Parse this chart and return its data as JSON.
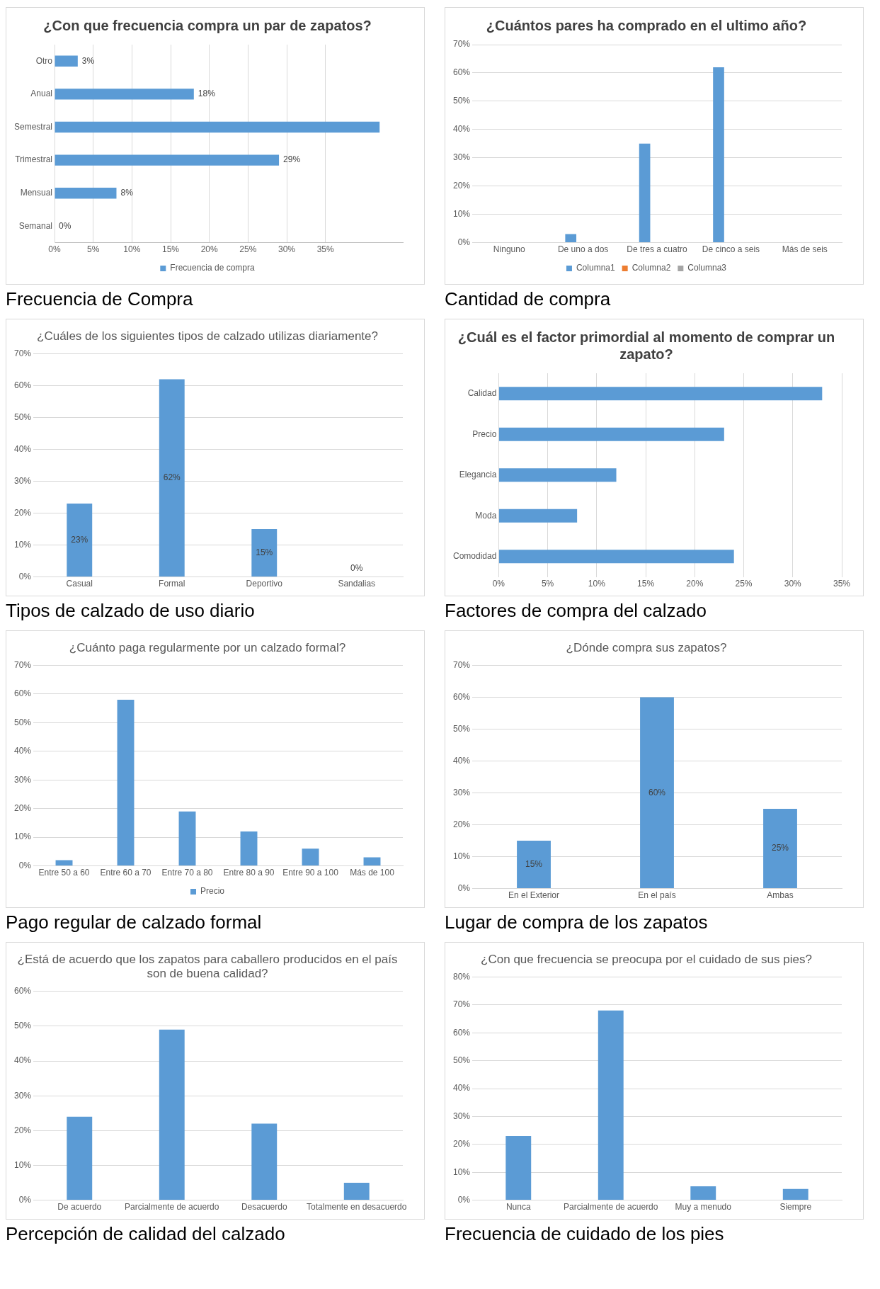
{
  "chart_data": [
    {
      "type": "bar",
      "orientation": "horizontal",
      "title": "¿Con que frecuencia compra un par de zapatos?",
      "categories": [
        "Otro",
        "Anual",
        "Semestral",
        "Trimestral",
        "Mensual",
        "Semanal"
      ],
      "series": [
        {
          "name": "Frecuencia de compra",
          "color": "#5b9bd5",
          "values": [
            3,
            18,
            42,
            29,
            8,
            0
          ],
          "value_labels": [
            "3%",
            "18%",
            null,
            "29%",
            "8%",
            "0%"
          ]
        }
      ],
      "xlim": [
        0,
        45
      ],
      "xticks": [
        {
          "value": 0,
          "label": "0%"
        },
        {
          "value": 5,
          "label": "5%"
        },
        {
          "value": 10,
          "label": "10%"
        },
        {
          "value": 15,
          "label": "15%"
        },
        {
          "value": 20,
          "label": "20%"
        },
        {
          "value": 25,
          "label": "25%"
        },
        {
          "value": 30,
          "label": "30%"
        },
        {
          "value": 35,
          "label": "35%"
        }
      ],
      "grid": "x",
      "legend": "bottom",
      "annotations": [
        "Frecuencia de Compra"
      ]
    },
    {
      "type": "bar",
      "title": "¿Cuántos pares ha comprado en el ultimo año?",
      "categories": [
        "Ninguno",
        "De uno a dos",
        "De tres a cuatro",
        "De cinco a seis",
        "Más de seis"
      ],
      "series": [
        {
          "name": "Columna1",
          "color": "#5b9bd5",
          "values": [
            0,
            3,
            35,
            62,
            0
          ]
        },
        {
          "name": "Columna2",
          "color": "#ed7d31",
          "values": [
            null,
            null,
            null,
            null,
            null
          ]
        },
        {
          "name": "Columna3",
          "color": "#a5a5a5",
          "values": [
            null,
            null,
            null,
            null,
            null
          ]
        }
      ],
      "ylim": [
        0,
        70
      ],
      "yticks": [
        {
          "value": 0,
          "label": "0%"
        },
        {
          "value": 10,
          "label": "10%"
        },
        {
          "value": 20,
          "label": "20%"
        },
        {
          "value": 30,
          "label": "30%"
        },
        {
          "value": 40,
          "label": "40%"
        },
        {
          "value": 50,
          "label": "50%"
        },
        {
          "value": 60,
          "label": "60%"
        },
        {
          "value": 70,
          "label": "70%"
        }
      ],
      "grid": "y",
      "legend": "bottom",
      "annotations": [
        "Cantidad de compra"
      ]
    },
    {
      "type": "bar",
      "title": "¿Cuáles de los siguientes tipos de calzado utilizas diariamente?",
      "categories": [
        "Casual",
        "Formal",
        "Deportivo",
        "Sandalias"
      ],
      "series": [
        {
          "color": "#5b9bd5",
          "values": [
            23,
            62,
            15,
            0
          ],
          "value_labels": [
            "23%",
            "62%",
            "15%",
            "0%"
          ]
        }
      ],
      "ylim": [
        0,
        70
      ],
      "yticks": [
        {
          "value": 0,
          "label": "0%"
        },
        {
          "value": 10,
          "label": "10%"
        },
        {
          "value": 20,
          "label": "20%"
        },
        {
          "value": 30,
          "label": "30%"
        },
        {
          "value": 40,
          "label": "40%"
        },
        {
          "value": 50,
          "label": "50%"
        },
        {
          "value": 60,
          "label": "60%"
        },
        {
          "value": 70,
          "label": "70%"
        }
      ],
      "grid": "y",
      "annotations": [
        "Tipos de calzado de uso diario"
      ]
    },
    {
      "type": "bar",
      "orientation": "horizontal",
      "title": "¿Cuál es el factor primordial al momento de comprar un zapato?",
      "categories": [
        "Calidad",
        "Precio",
        "Elegancia",
        "Moda",
        "Comodidad"
      ],
      "series": [
        {
          "color": "#5b9bd5",
          "values": [
            33,
            23,
            12,
            8,
            24
          ]
        }
      ],
      "xlim": [
        0,
        35
      ],
      "xticks": [
        {
          "value": 0,
          "label": "0%"
        },
        {
          "value": 5,
          "label": "5%"
        },
        {
          "value": 10,
          "label": "10%"
        },
        {
          "value": 15,
          "label": "15%"
        },
        {
          "value": 20,
          "label": "20%"
        },
        {
          "value": 25,
          "label": "25%"
        },
        {
          "value": 30,
          "label": "30%"
        },
        {
          "value": 35,
          "label": "35%"
        }
      ],
      "grid": "x",
      "annotations": [
        "Factores de compra del calzado"
      ]
    },
    {
      "type": "bar",
      "title": "¿Cuánto paga regularmente por un calzado formal?",
      "categories": [
        "Entre 50 a 60",
        "Entre 60 a 70",
        "Entre 70 a 80",
        "Entre 80 a 90",
        "Entre 90 a 100",
        "Más de 100"
      ],
      "series": [
        {
          "name": "Precio",
          "color": "#5b9bd5",
          "values": [
            2,
            58,
            19,
            12,
            6,
            3
          ]
        }
      ],
      "ylim": [
        0,
        70
      ],
      "yticks": [
        {
          "value": 0,
          "label": "0%"
        },
        {
          "value": 10,
          "label": "10%"
        },
        {
          "value": 20,
          "label": "20%"
        },
        {
          "value": 30,
          "label": "30%"
        },
        {
          "value": 40,
          "label": "40%"
        },
        {
          "value": 50,
          "label": "50%"
        },
        {
          "value": 60,
          "label": "60%"
        },
        {
          "value": 70,
          "label": "70%"
        }
      ],
      "grid": "y",
      "legend": "bottom",
      "annotations": [
        "Pago regular de calzado formal"
      ]
    },
    {
      "type": "bar",
      "title": "¿Dónde compra sus zapatos?",
      "categories": [
        "En el Exterior",
        "En el país",
        "Ambas"
      ],
      "series": [
        {
          "color": "#5b9bd5",
          "values": [
            15,
            60,
            25
          ],
          "value_labels": [
            "15%",
            "60%",
            "25%"
          ]
        }
      ],
      "ylim": [
        0,
        70
      ],
      "yticks": [
        {
          "value": 0,
          "label": "0%"
        },
        {
          "value": 10,
          "label": "10%"
        },
        {
          "value": 20,
          "label": "20%"
        },
        {
          "value": 30,
          "label": "30%"
        },
        {
          "value": 40,
          "label": "40%"
        },
        {
          "value": 50,
          "label": "50%"
        },
        {
          "value": 60,
          "label": "60%"
        },
        {
          "value": 70,
          "label": "70%"
        }
      ],
      "grid": "y",
      "annotations": [
        "Lugar de compra de los zapatos"
      ]
    },
    {
      "type": "bar",
      "title": "¿Está de acuerdo que los zapatos para caballero producidos en el país son de buena calidad?",
      "categories": [
        "De acuerdo",
        "Parcialmente de acuerdo",
        "Desacuerdo",
        "Totalmente en desacuerdo"
      ],
      "series": [
        {
          "color": "#5b9bd5",
          "values": [
            24,
            49,
            22,
            5
          ]
        }
      ],
      "ylim": [
        0,
        60
      ],
      "yticks": [
        {
          "value": 0,
          "label": "0%"
        },
        {
          "value": 10,
          "label": "10%"
        },
        {
          "value": 20,
          "label": "20%"
        },
        {
          "value": 30,
          "label": "30%"
        },
        {
          "value": 40,
          "label": "40%"
        },
        {
          "value": 50,
          "label": "50%"
        },
        {
          "value": 60,
          "label": "60%"
        }
      ],
      "grid": "y",
      "annotations": [
        "Percepción de calidad del calzado"
      ]
    },
    {
      "type": "bar",
      "title": "¿Con que frecuencia se preocupa por el cuidado de sus pies?",
      "categories": [
        "Nunca",
        "Parcialmente de acuerdo",
        "Muy a menudo",
        "Siempre"
      ],
      "series": [
        {
          "color": "#5b9bd5",
          "values": [
            23,
            68,
            5,
            4
          ]
        }
      ],
      "ylim": [
        0,
        80
      ],
      "yticks": [
        {
          "value": 0,
          "label": "0%"
        },
        {
          "value": 10,
          "label": "10%"
        },
        {
          "value": 20,
          "label": "20%"
        },
        {
          "value": 30,
          "label": "30%"
        },
        {
          "value": 40,
          "label": "40%"
        },
        {
          "value": 50,
          "label": "50%"
        },
        {
          "value": 60,
          "label": "60%"
        },
        {
          "value": 70,
          "label": "70%"
        },
        {
          "value": 80,
          "label": "80%"
        }
      ],
      "grid": "y",
      "annotations": [
        "Frecuencia de cuidado de los pies"
      ]
    }
  ]
}
